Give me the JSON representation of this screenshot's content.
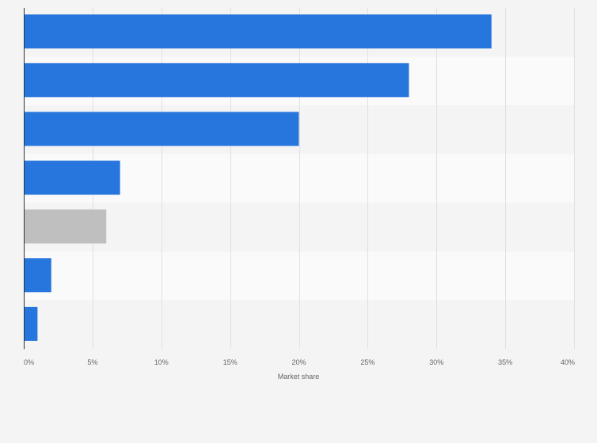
{
  "chart_data": {
    "type": "bar",
    "orientation": "horizontal",
    "title": "",
    "xlabel": "Market share",
    "ylabel": "",
    "xlim": [
      0,
      0.4
    ],
    "x_ticks": [
      {
        "value": 0,
        "label": "0%"
      },
      {
        "value": 0.05,
        "label": "5%"
      },
      {
        "value": 0.1,
        "label": "10%"
      },
      {
        "value": 0.15,
        "label": "15%"
      },
      {
        "value": 0.2,
        "label": "20%"
      },
      {
        "value": 0.25,
        "label": "25%"
      },
      {
        "value": 0.3,
        "label": "30%"
      },
      {
        "value": 0.35,
        "label": "35%"
      },
      {
        "value": 0.4,
        "label": "40%"
      }
    ],
    "grid": true,
    "legend": "none",
    "bars": [
      {
        "value": 0.34,
        "color": "#2776dd"
      },
      {
        "value": 0.28,
        "color": "#2776dd"
      },
      {
        "value": 0.2,
        "color": "#2776dd"
      },
      {
        "value": 0.07,
        "color": "#2776dd"
      },
      {
        "value": 0.06,
        "color": "#bfbfbf"
      },
      {
        "value": 0.02,
        "color": "#2776dd"
      },
      {
        "value": 0.01,
        "color": "#2776dd"
      }
    ],
    "colors": {
      "accent": "#2776dd",
      "highlight": "#bfbfbf",
      "band_light": "#fafafa",
      "band_dark": "#f4f4f4",
      "gridline": "#e0e0e0",
      "axis": "#333333"
    }
  }
}
